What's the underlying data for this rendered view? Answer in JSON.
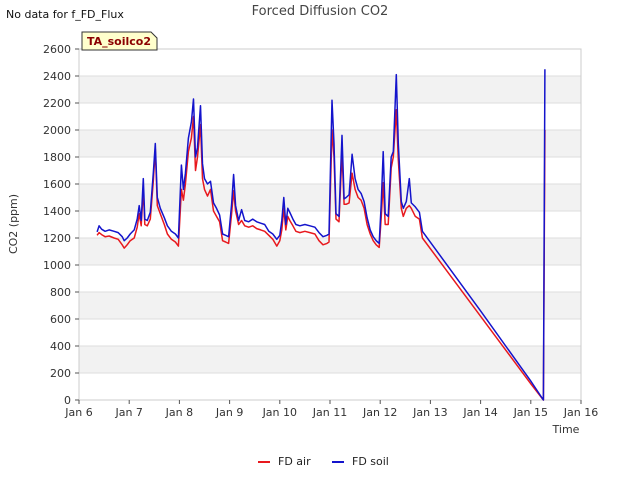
{
  "chart_data": {
    "type": "line",
    "title": "Forced Diffusion CO2",
    "no_data_note": "No data for f_FD_Flux",
    "site_badge": "TA_soilco2",
    "xlabel": "Time",
    "ylabel": "CO2 (ppm)",
    "xlim": [
      6,
      16
    ],
    "ylim": [
      0,
      2600
    ],
    "x_ticks": [
      {
        "value": 6,
        "label": "Jan 6"
      },
      {
        "value": 7,
        "label": "Jan 7"
      },
      {
        "value": 8,
        "label": "Jan 8"
      },
      {
        "value": 9,
        "label": "Jan 9"
      },
      {
        "value": 10,
        "label": "Jan 10"
      },
      {
        "value": 11,
        "label": "Jan 11"
      },
      {
        "value": 12,
        "label": "Jan 12"
      },
      {
        "value": 13,
        "label": "Jan 13"
      },
      {
        "value": 14,
        "label": "Jan 14"
      },
      {
        "value": 15,
        "label": "Jan 15"
      },
      {
        "value": 16,
        "label": "Jan 16"
      }
    ],
    "y_ticks": [
      0,
      200,
      400,
      600,
      800,
      1000,
      1200,
      1400,
      1600,
      1800,
      2000,
      2200,
      2400,
      2600
    ],
    "grid": true,
    "legend_position": "bottom",
    "series": [
      {
        "name": "FD air",
        "color": "#e8191e",
        "points": [
          [
            6.36,
            1220
          ],
          [
            6.4,
            1240
          ],
          [
            6.45,
            1225
          ],
          [
            6.52,
            1210
          ],
          [
            6.6,
            1215
          ],
          [
            6.7,
            1200
          ],
          [
            6.78,
            1190
          ],
          [
            6.86,
            1150
          ],
          [
            6.9,
            1125
          ],
          [
            6.96,
            1150
          ],
          [
            7.02,
            1180
          ],
          [
            7.1,
            1200
          ],
          [
            7.16,
            1280
          ],
          [
            7.2,
            1380
          ],
          [
            7.24,
            1290
          ],
          [
            7.28,
            1560
          ],
          [
            7.31,
            1300
          ],
          [
            7.36,
            1290
          ],
          [
            7.42,
            1340
          ],
          [
            7.48,
            1620
          ],
          [
            7.52,
            1860
          ],
          [
            7.56,
            1440
          ],
          [
            7.62,
            1380
          ],
          [
            7.7,
            1300
          ],
          [
            7.76,
            1230
          ],
          [
            7.84,
            1190
          ],
          [
            7.92,
            1170
          ],
          [
            7.98,
            1140
          ],
          [
            8.04,
            1560
          ],
          [
            8.08,
            1480
          ],
          [
            8.12,
            1600
          ],
          [
            8.18,
            1840
          ],
          [
            8.24,
            1940
          ],
          [
            8.28,
            2100
          ],
          [
            8.32,
            1700
          ],
          [
            8.36,
            1800
          ],
          [
            8.42,
            2040
          ],
          [
            8.46,
            1640
          ],
          [
            8.5,
            1560
          ],
          [
            8.56,
            1510
          ],
          [
            8.62,
            1560
          ],
          [
            8.68,
            1400
          ],
          [
            8.74,
            1360
          ],
          [
            8.8,
            1320
          ],
          [
            8.86,
            1180
          ],
          [
            8.92,
            1170
          ],
          [
            8.98,
            1160
          ],
          [
            9.04,
            1380
          ],
          [
            9.08,
            1550
          ],
          [
            9.12,
            1400
          ],
          [
            9.18,
            1300
          ],
          [
            9.24,
            1330
          ],
          [
            9.3,
            1290
          ],
          [
            9.38,
            1280
          ],
          [
            9.46,
            1290
          ],
          [
            9.54,
            1270
          ],
          [
            9.62,
            1260
          ],
          [
            9.7,
            1250
          ],
          [
            9.78,
            1220
          ],
          [
            9.86,
            1190
          ],
          [
            9.94,
            1140
          ],
          [
            10.0,
            1180
          ],
          [
            10.04,
            1260
          ],
          [
            10.08,
            1420
          ],
          [
            10.12,
            1260
          ],
          [
            10.16,
            1360
          ],
          [
            10.2,
            1330
          ],
          [
            10.26,
            1290
          ],
          [
            10.32,
            1250
          ],
          [
            10.4,
            1240
          ],
          [
            10.5,
            1250
          ],
          [
            10.6,
            1240
          ],
          [
            10.7,
            1230
          ],
          [
            10.78,
            1180
          ],
          [
            10.86,
            1150
          ],
          [
            10.94,
            1160
          ],
          [
            10.98,
            1170
          ],
          [
            11.04,
            2000
          ],
          [
            11.08,
            1800
          ],
          [
            11.12,
            1340
          ],
          [
            11.18,
            1320
          ],
          [
            11.24,
            1830
          ],
          [
            11.28,
            1450
          ],
          [
            11.32,
            1450
          ],
          [
            11.38,
            1460
          ],
          [
            11.44,
            1680
          ],
          [
            11.5,
            1560
          ],
          [
            11.56,
            1500
          ],
          [
            11.62,
            1480
          ],
          [
            11.68,
            1420
          ],
          [
            11.74,
            1300
          ],
          [
            11.8,
            1230
          ],
          [
            11.86,
            1180
          ],
          [
            11.92,
            1150
          ],
          [
            11.98,
            1130
          ],
          [
            12.02,
            1350
          ],
          [
            12.06,
            1610
          ],
          [
            12.1,
            1300
          ],
          [
            12.16,
            1300
          ],
          [
            12.22,
            1720
          ],
          [
            12.26,
            1800
          ],
          [
            12.32,
            2150
          ],
          [
            12.36,
            1780
          ],
          [
            12.42,
            1420
          ],
          [
            12.46,
            1360
          ],
          [
            12.52,
            1420
          ],
          [
            12.58,
            1440
          ],
          [
            12.62,
            1420
          ],
          [
            12.7,
            1360
          ],
          [
            12.78,
            1340
          ],
          [
            12.84,
            1200
          ],
          [
            14.0,
            620
          ],
          [
            15.0,
            120
          ],
          [
            15.25,
            0
          ],
          [
            15.28,
            2000
          ]
        ]
      },
      {
        "name": "FD soil",
        "color": "#1414cc",
        "points": [
          [
            6.36,
            1245
          ],
          [
            6.4,
            1290
          ],
          [
            6.45,
            1265
          ],
          [
            6.52,
            1250
          ],
          [
            6.6,
            1260
          ],
          [
            6.7,
            1250
          ],
          [
            6.78,
            1240
          ],
          [
            6.86,
            1210
          ],
          [
            6.9,
            1180
          ],
          [
            6.96,
            1200
          ],
          [
            7.02,
            1230
          ],
          [
            7.1,
            1260
          ],
          [
            7.16,
            1340
          ],
          [
            7.2,
            1440
          ],
          [
            7.24,
            1330
          ],
          [
            7.28,
            1640
          ],
          [
            7.31,
            1340
          ],
          [
            7.36,
            1330
          ],
          [
            7.42,
            1390
          ],
          [
            7.48,
            1680
          ],
          [
            7.52,
            1900
          ],
          [
            7.56,
            1500
          ],
          [
            7.62,
            1420
          ],
          [
            7.7,
            1350
          ],
          [
            7.76,
            1290
          ],
          [
            7.84,
            1250
          ],
          [
            7.92,
            1230
          ],
          [
            7.98,
            1200
          ],
          [
            8.04,
            1740
          ],
          [
            8.08,
            1560
          ],
          [
            8.12,
            1680
          ],
          [
            8.18,
            1940
          ],
          [
            8.24,
            2060
          ],
          [
            8.28,
            2230
          ],
          [
            8.32,
            1800
          ],
          [
            8.36,
            1870
          ],
          [
            8.42,
            2180
          ],
          [
            8.46,
            1750
          ],
          [
            8.5,
            1640
          ],
          [
            8.56,
            1600
          ],
          [
            8.62,
            1620
          ],
          [
            8.68,
            1460
          ],
          [
            8.74,
            1420
          ],
          [
            8.8,
            1370
          ],
          [
            8.86,
            1230
          ],
          [
            8.92,
            1220
          ],
          [
            8.98,
            1210
          ],
          [
            9.04,
            1450
          ],
          [
            9.08,
            1670
          ],
          [
            9.12,
            1440
          ],
          [
            9.18,
            1330
          ],
          [
            9.24,
            1410
          ],
          [
            9.3,
            1330
          ],
          [
            9.38,
            1320
          ],
          [
            9.46,
            1340
          ],
          [
            9.54,
            1320
          ],
          [
            9.62,
            1310
          ],
          [
            9.7,
            1300
          ],
          [
            9.78,
            1250
          ],
          [
            9.86,
            1230
          ],
          [
            9.94,
            1190
          ],
          [
            10.0,
            1220
          ],
          [
            10.04,
            1330
          ],
          [
            10.08,
            1500
          ],
          [
            10.12,
            1300
          ],
          [
            10.16,
            1420
          ],
          [
            10.2,
            1390
          ],
          [
            10.26,
            1340
          ],
          [
            10.32,
            1300
          ],
          [
            10.4,
            1290
          ],
          [
            10.5,
            1300
          ],
          [
            10.6,
            1290
          ],
          [
            10.7,
            1280
          ],
          [
            10.78,
            1240
          ],
          [
            10.86,
            1210
          ],
          [
            10.94,
            1220
          ],
          [
            10.98,
            1230
          ],
          [
            11.04,
            2220
          ],
          [
            11.08,
            1900
          ],
          [
            11.12,
            1380
          ],
          [
            11.18,
            1360
          ],
          [
            11.24,
            1960
          ],
          [
            11.28,
            1490
          ],
          [
            11.32,
            1500
          ],
          [
            11.38,
            1520
          ],
          [
            11.44,
            1820
          ],
          [
            11.5,
            1640
          ],
          [
            11.56,
            1560
          ],
          [
            11.62,
            1530
          ],
          [
            11.68,
            1470
          ],
          [
            11.74,
            1350
          ],
          [
            11.8,
            1260
          ],
          [
            11.86,
            1210
          ],
          [
            11.92,
            1180
          ],
          [
            11.98,
            1160
          ],
          [
            12.02,
            1450
          ],
          [
            12.06,
            1840
          ],
          [
            12.1,
            1380
          ],
          [
            12.16,
            1360
          ],
          [
            12.22,
            1800
          ],
          [
            12.26,
            1840
          ],
          [
            12.32,
            2410
          ],
          [
            12.36,
            1900
          ],
          [
            12.42,
            1470
          ],
          [
            12.46,
            1420
          ],
          [
            12.52,
            1470
          ],
          [
            12.58,
            1640
          ],
          [
            12.62,
            1460
          ],
          [
            12.7,
            1430
          ],
          [
            12.78,
            1390
          ],
          [
            12.84,
            1250
          ],
          [
            14.0,
            660
          ],
          [
            15.0,
            140
          ],
          [
            15.25,
            0
          ],
          [
            15.28,
            2450
          ]
        ]
      }
    ]
  }
}
